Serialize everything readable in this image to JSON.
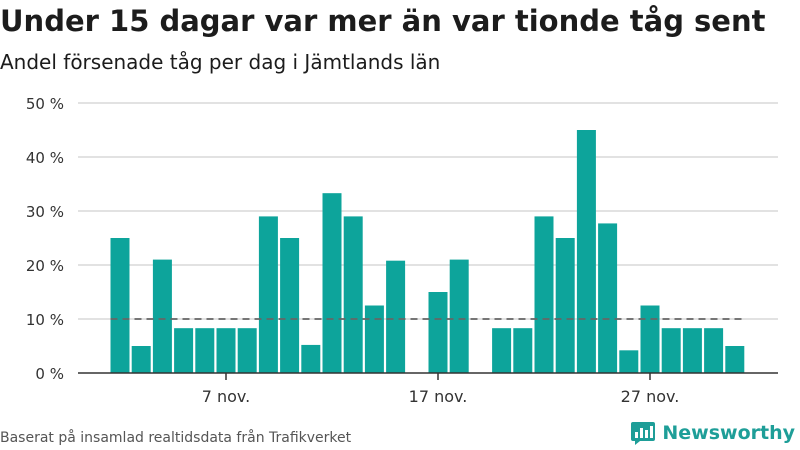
{
  "header": {
    "title": "Under 15 dagar var mer än var tionde tåg sent",
    "subtitle": "Andel försenade tåg per dag i Jämtlands län"
  },
  "footer": {
    "source": "Baserat på insamlad realtidsdata från Trafikverket",
    "brand": "Newsworthy"
  },
  "colors": {
    "bar": "#0da49b",
    "reference_line": "#666666",
    "grid": "#d9d9d9",
    "axis": "#333333",
    "brand": "#1e9e98"
  },
  "chart_data": {
    "type": "bar",
    "title": "Under 15 dagar var mer än var tionde tåg sent",
    "subtitle": "Andel försenade tåg per dag i Jämtlands län",
    "xlabel": "",
    "ylabel": "",
    "x_start_day": 2,
    "x_month": "nov.",
    "values": [
      25,
      5,
      21,
      8.3,
      8.3,
      8.3,
      8.3,
      29,
      25,
      5.2,
      33.3,
      29,
      12.5,
      20.8,
      0,
      15,
      21,
      0,
      8.3,
      8.3,
      29,
      25,
      45,
      27.7,
      4.2,
      12.5,
      8.3,
      8.3,
      8.3,
      5
    ],
    "ylim": [
      0,
      50
    ],
    "yticks": [
      0,
      10,
      20,
      30,
      40,
      50
    ],
    "ytick_labels": [
      "0 %",
      "10 %",
      "20 %",
      "30 %",
      "40 %",
      "50 %"
    ],
    "xticks": [
      {
        "day": 7,
        "label": "7 nov."
      },
      {
        "day": 17,
        "label": "17 nov."
      },
      {
        "day": 27,
        "label": "27 nov."
      }
    ],
    "reference_line": {
      "value": 10,
      "style": "dashed"
    },
    "grid": true,
    "legend": "none"
  }
}
